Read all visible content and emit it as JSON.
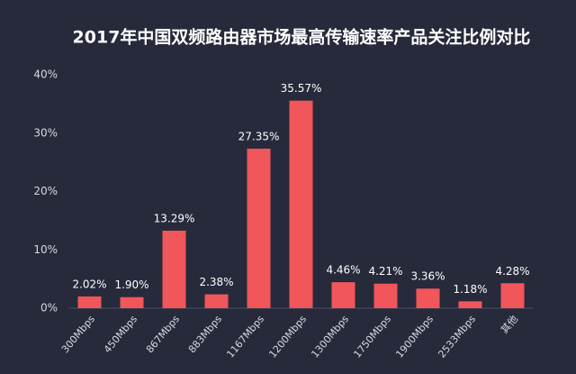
{
  "chart_data": {
    "type": "bar",
    "title": "2017年中国双频路由器市场最高传输速率产品关注比例对比",
    "categories": [
      "300Mbps",
      "450Mbps",
      "867Mbps",
      "883Mbps",
      "1167Mbps",
      "1200Mbps",
      "1300Mbps",
      "1750Mbps",
      "1900Mbps",
      "2533Mbps",
      "其他"
    ],
    "values": [
      2.02,
      1.9,
      13.29,
      2.38,
      27.35,
      35.57,
      4.46,
      4.21,
      3.36,
      1.18,
      4.28
    ],
    "value_labels": [
      "2.02%",
      "1.90%",
      "13.29%",
      "2.38%",
      "27.35%",
      "35.57%",
      "4.46%",
      "4.21%",
      "3.36%",
      "1.18%",
      "4.28%"
    ],
    "color": "#f0565a",
    "ylim": [
      0,
      40
    ],
    "yticks": [
      {
        "value": 0,
        "label": "0%"
      },
      {
        "value": 10,
        "label": "10%"
      },
      {
        "value": 20,
        "label": "20%"
      },
      {
        "value": 30,
        "label": "30%"
      },
      {
        "value": 40,
        "label": "40%"
      }
    ],
    "grid": false
  }
}
